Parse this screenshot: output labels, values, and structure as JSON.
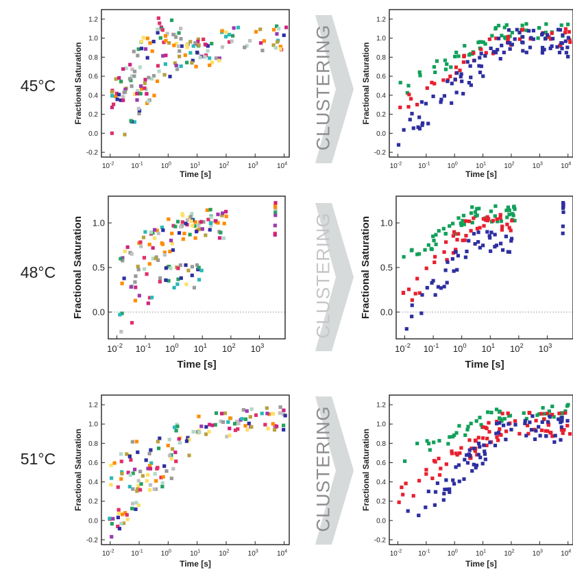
{
  "row_labels": [
    "45°C",
    "48°C",
    "51°C"
  ],
  "arrow_label": "CLUSTERING",
  "colors": {
    "cluster_green": "#12a05a",
    "cluster_red": "#e8202e",
    "cluster_blue": "#2e2fa0",
    "raw_palette": [
      "#d0237e",
      "#9c3ab0",
      "#2ab8b8",
      "#26a060",
      "#ffe066",
      "#9a9a9a",
      "#c0c0c0",
      "#2e2fa0",
      "#e0306a",
      "#ff8c00",
      "#b0d8c8",
      "#b8a040"
    ],
    "arrow_fill": "#d7dada",
    "arrow_text_dark": "#8d8d8d",
    "arrow_text_light": "#c6c6c6"
  },
  "chart_data": [
    {
      "id": "45C-raw",
      "type": "scatter",
      "temperature": "45°C",
      "view": "before clustering",
      "xlabel": "Time [s]",
      "ylabel": "Fractional Saturation",
      "x_scale": "log",
      "xlim": [
        0.005,
        15000
      ],
      "ylim": [
        -0.25,
        1.3
      ],
      "xtick_labels": [
        "10-2",
        "10-1",
        "100",
        "101",
        "102",
        "103",
        "104"
      ],
      "ytick_labels": [
        "-0.2",
        "0.0",
        "0.2",
        "0.4",
        "0.6",
        "0.8",
        "1.0",
        "1.2"
      ],
      "clusters": [
        {
          "color": "mixed",
          "n": 55,
          "x_range": [
            0.009,
            3
          ],
          "y_start": 0.3,
          "y_end": 1.05,
          "spread": 0.16
        },
        {
          "color": "mixed",
          "n": 70,
          "x_range": [
            0.01,
            12000
          ],
          "y_start": 0.4,
          "y_end": 1.0,
          "spread": 0.13
        },
        {
          "color": "mixed",
          "n": 55,
          "x_range": [
            0.009,
            60
          ],
          "y_start": -0.1,
          "y_end": 0.85,
          "spread": 0.16
        }
      ]
    },
    {
      "id": "45C-clustered",
      "type": "scatter",
      "temperature": "45°C",
      "view": "after clustering",
      "xlabel": "Time [s]",
      "ylabel": "Fractional Saturation",
      "x_scale": "log",
      "xlim": [
        0.005,
        15000
      ],
      "ylim": [
        -0.25,
        1.3
      ],
      "xtick_labels": [
        "10-2",
        "10-1",
        "100",
        "101",
        "102",
        "103",
        "104"
      ],
      "ytick_labels": [
        "-0.2",
        "0.0",
        "0.2",
        "0.4",
        "0.6",
        "0.8",
        "1.0",
        "1.2"
      ],
      "clusters": [
        {
          "color": "green",
          "n": 55,
          "x_range": [
            0.009,
            12000
          ],
          "y_start": 0.45,
          "y_end": 1.08,
          "spread": 0.09
        },
        {
          "color": "red",
          "n": 45,
          "x_range": [
            0.009,
            12000
          ],
          "y_start": 0.25,
          "y_end": 1.0,
          "spread": 0.1
        },
        {
          "color": "blue",
          "n": 90,
          "x_range": [
            0.009,
            12000
          ],
          "y_start": -0.05,
          "y_end": 0.95,
          "spread": 0.15
        }
      ]
    },
    {
      "id": "48C-raw",
      "type": "scatter",
      "temperature": "48°C",
      "view": "before clustering",
      "xlabel": "Time [s]",
      "ylabel": "Fractional Saturation",
      "x_scale": "log",
      "xlim": [
        0.005,
        8000
      ],
      "ylim": [
        -0.3,
        1.3
      ],
      "xtick_labels": [
        "10-2",
        "10-1",
        "100",
        "101",
        "102",
        "103"
      ],
      "ytick_labels": [
        "0.0",
        "0.5",
        "1.0"
      ],
      "zero_line": true,
      "clusters": [
        {
          "color": "mixed",
          "n": 60,
          "x_range": [
            0.008,
            70
          ],
          "y_start": 0.6,
          "y_end": 1.05,
          "spread": 0.1
        },
        {
          "color": "mixed",
          "n": 50,
          "x_range": [
            0.008,
            70
          ],
          "y_start": 0.15,
          "y_end": 0.95,
          "spread": 0.13
        },
        {
          "color": "mixed",
          "n": 35,
          "x_range": [
            0.008,
            10
          ],
          "y_start": -0.2,
          "y_end": 0.4,
          "spread": 0.13
        },
        {
          "color": "mixed",
          "n": 10,
          "x_range": [
            3500,
            3700
          ],
          "y_start": 0.8,
          "y_end": 1.2,
          "spread": 0.12
        }
      ]
    },
    {
      "id": "48C-clustered",
      "type": "scatter",
      "temperature": "48°C",
      "view": "after clustering",
      "xlabel": "Time [s]",
      "ylabel": "Fractional Saturation",
      "x_scale": "log",
      "xlim": [
        0.005,
        8000
      ],
      "ylim": [
        -0.3,
        1.3
      ],
      "xtick_labels": [
        "10-2",
        "10-1",
        "100",
        "101",
        "102",
        "103"
      ],
      "ytick_labels": [
        "0.0",
        "0.5",
        "1.0"
      ],
      "zero_line": true,
      "clusters": [
        {
          "color": "green",
          "n": 55,
          "x_range": [
            0.008,
            80
          ],
          "y_start": 0.55,
          "y_end": 1.1,
          "spread": 0.09
        },
        {
          "color": "red",
          "n": 45,
          "x_range": [
            0.008,
            60
          ],
          "y_start": 0.1,
          "y_end": 1.0,
          "spread": 0.12
        },
        {
          "color": "blue",
          "n": 45,
          "x_range": [
            0.008,
            60
          ],
          "y_start": -0.2,
          "y_end": 0.8,
          "spread": 0.13
        },
        {
          "color": "blue",
          "n": 8,
          "x_range": [
            3500,
            3700
          ],
          "y_start": 0.85,
          "y_end": 1.2,
          "spread": 0.1
        }
      ]
    },
    {
      "id": "51C-raw",
      "type": "scatter",
      "temperature": "51°C",
      "view": "before clustering",
      "xlabel": "Time [s]",
      "ylabel": "Fractional Saturation",
      "x_scale": "log",
      "xlim": [
        0.005,
        15000
      ],
      "ylim": [
        -0.25,
        1.3
      ],
      "xtick_labels": [
        "10-2",
        "10-1",
        "100",
        "101",
        "102",
        "103",
        "104"
      ],
      "ytick_labels": [
        "-0.2",
        "0.0",
        "0.2",
        "0.4",
        "0.6",
        "0.8",
        "1.0",
        "1.2"
      ],
      "clusters": [
        {
          "color": "mixed",
          "n": 60,
          "x_range": [
            0.009,
            12000
          ],
          "y_start": 0.6,
          "y_end": 1.05,
          "spread": 0.13
        },
        {
          "color": "mixed",
          "n": 55,
          "x_range": [
            0.009,
            12000
          ],
          "y_start": 0.3,
          "y_end": 1.0,
          "spread": 0.14
        },
        {
          "color": "mixed",
          "n": 45,
          "x_range": [
            0.009,
            2
          ],
          "y_start": -0.1,
          "y_end": 0.45,
          "spread": 0.14
        }
      ]
    },
    {
      "id": "51C-clustered",
      "type": "scatter",
      "temperature": "51°C",
      "view": "after clustering",
      "xlabel": "Time [s]",
      "ylabel": "Fractional Saturation",
      "x_scale": "log",
      "xlim": [
        0.005,
        15000
      ],
      "ylim": [
        -0.25,
        1.3
      ],
      "xtick_labels": [
        "10-2",
        "10-1",
        "100",
        "101",
        "102",
        "103",
        "104"
      ],
      "ytick_labels": [
        "-0.2",
        "0.0",
        "0.2",
        "0.4",
        "0.6",
        "0.8",
        "1.0",
        "1.2"
      ],
      "clusters": [
        {
          "color": "green",
          "n": 50,
          "x_range": [
            0.009,
            12000
          ],
          "y_start": 0.65,
          "y_end": 1.12,
          "spread": 0.08
        },
        {
          "color": "red",
          "n": 80,
          "x_range": [
            0.009,
            12000
          ],
          "y_start": 0.25,
          "y_end": 1.0,
          "spread": 0.13
        },
        {
          "color": "blue",
          "n": 75,
          "x_range": [
            0.009,
            12000
          ],
          "y_start": -0.15,
          "y_end": 0.95,
          "spread": 0.14
        }
      ]
    }
  ]
}
